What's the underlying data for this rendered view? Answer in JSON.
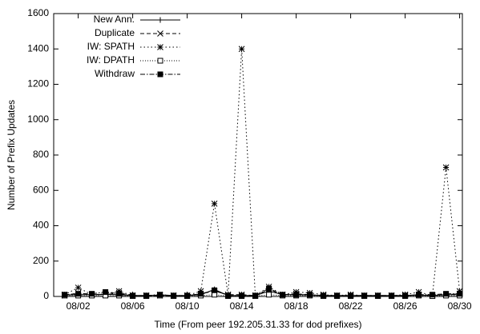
{
  "chart_data": {
    "type": "line",
    "xlabel": "Time (From peer 192.205.31.33 for dod prefixes)",
    "ylabel": "Number of Prefix Updates",
    "x": [
      1,
      2,
      3,
      4,
      5,
      6,
      7,
      8,
      9,
      10,
      11,
      12,
      13,
      14,
      15,
      16,
      17,
      18,
      19,
      20,
      21,
      22,
      23,
      24,
      25,
      26,
      27,
      28,
      29,
      30
    ],
    "xlim": [
      0.2,
      30.2
    ],
    "xticks": [
      {
        "value": 2,
        "label": "08/02"
      },
      {
        "value": 6,
        "label": "08/06"
      },
      {
        "value": 10,
        "label": "08/10"
      },
      {
        "value": 14,
        "label": "08/14"
      },
      {
        "value": 18,
        "label": "08/18"
      },
      {
        "value": 22,
        "label": "08/22"
      },
      {
        "value": 26,
        "label": "08/26"
      },
      {
        "value": 30,
        "label": "08/30"
      }
    ],
    "ylim": [
      0,
      1600
    ],
    "yticks": [
      0,
      200,
      400,
      600,
      800,
      1000,
      1200,
      1400,
      1600
    ],
    "legend": "top-left",
    "series": [
      {
        "name": "New Ann.",
        "color": "#000000",
        "values": [
          8,
          10,
          10,
          12,
          10,
          5,
          5,
          8,
          5,
          5,
          10,
          40,
          5,
          5,
          5,
          30,
          10,
          10,
          8,
          5,
          5,
          5,
          5,
          5,
          5,
          5,
          8,
          5,
          10,
          10
        ]
      },
      {
        "name": "Duplicate",
        "color": "#000000",
        "values": [
          5,
          20,
          10,
          10,
          20,
          5,
          5,
          5,
          5,
          5,
          15,
          30,
          10,
          10,
          5,
          40,
          10,
          15,
          10,
          5,
          5,
          5,
          5,
          5,
          5,
          5,
          10,
          5,
          10,
          15
        ]
      },
      {
        "name": "IW: SPATH",
        "color": "#000000",
        "values": [
          10,
          50,
          10,
          15,
          30,
          5,
          5,
          10,
          5,
          5,
          30,
          525,
          10,
          1400,
          5,
          55,
          10,
          25,
          20,
          10,
          5,
          10,
          5,
          5,
          5,
          10,
          25,
          5,
          730,
          30
        ]
      },
      {
        "name": "IW: DPATH",
        "color": "#000000",
        "values": [
          5,
          5,
          5,
          5,
          5,
          2,
          2,
          5,
          2,
          2,
          5,
          10,
          2,
          2,
          2,
          10,
          5,
          5,
          5,
          2,
          2,
          2,
          2,
          2,
          2,
          2,
          5,
          2,
          5,
          5
        ]
      },
      {
        "name": "Withdraw",
        "color": "#000000",
        "values": [
          10,
          15,
          15,
          25,
          15,
          5,
          5,
          10,
          5,
          5,
          15,
          35,
          5,
          5,
          5,
          45,
          10,
          10,
          10,
          5,
          5,
          5,
          5,
          5,
          5,
          5,
          10,
          10,
          15,
          15
        ]
      }
    ]
  }
}
